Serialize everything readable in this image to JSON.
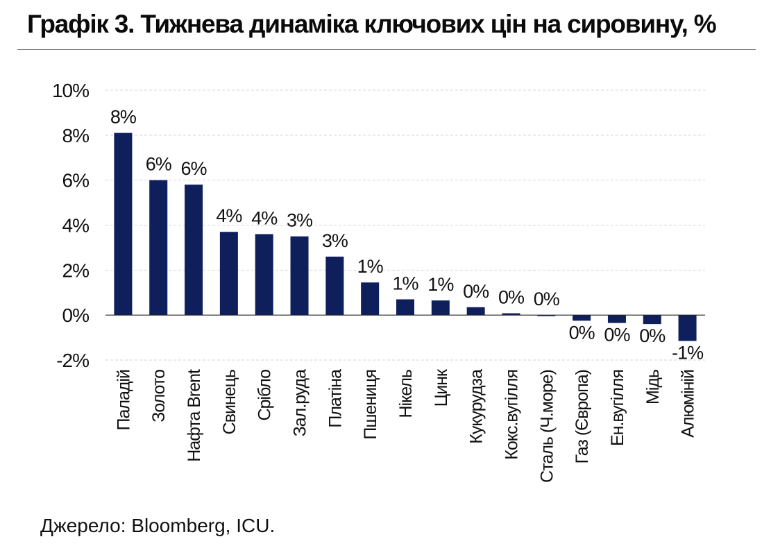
{
  "title": "Графік 3. Тижнева динаміка ключових цін на сировину, %",
  "source": "Джерело: Bloomberg, ICU.",
  "colors": {
    "bar": "#0f1f5c",
    "grid": "#d4d4d4",
    "axis": "#222222",
    "text": "#111111"
  },
  "chart_data": {
    "type": "bar",
    "title": "Графік 3. Тижнева динаміка ключових цін на сировину, %",
    "xlabel": "",
    "ylabel": "",
    "ylim": [
      -2,
      10
    ],
    "yticks": [
      10,
      8,
      6,
      4,
      2,
      0,
      -2
    ],
    "ytick_labels": [
      "10%",
      "8%",
      "6%",
      "4%",
      "2%",
      "0%",
      "-2%"
    ],
    "grid": true,
    "categories": [
      "Паладій",
      "Золото",
      "Нафта Brent",
      "Свинець",
      "Срібло",
      "Зал.руда",
      "Платіна",
      "Пшениця",
      "Нікель",
      "Цинк",
      "Кукурудза",
      "Кокс.вугілля",
      "Сталь (Ч.море)",
      "Газ (Європа)",
      "Ен.вугілля",
      "Мідь",
      "Алюміній"
    ],
    "values": [
      8.1,
      6.0,
      5.8,
      3.7,
      3.6,
      3.5,
      2.6,
      1.45,
      0.7,
      0.65,
      0.35,
      0.08,
      0.0,
      -0.25,
      -0.35,
      -0.4,
      -1.15
    ],
    "data_labels": [
      "8%",
      "6%",
      "6%",
      "4%",
      "4%",
      "3%",
      "3%",
      "1%",
      "1%",
      "1%",
      "0%",
      "0%",
      "0%",
      "0%",
      "0%",
      "0%",
      "-1%"
    ]
  }
}
